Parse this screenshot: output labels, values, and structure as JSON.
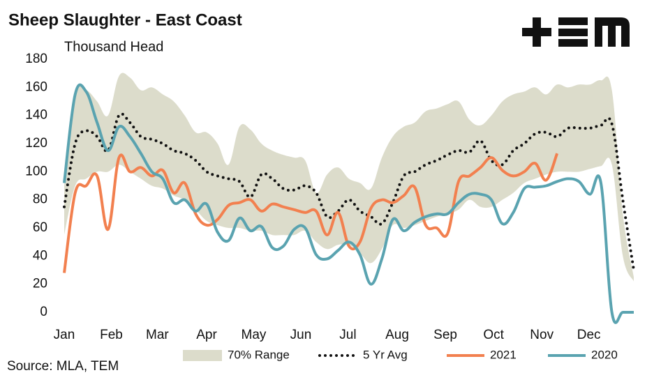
{
  "chart_data": {
    "type": "line",
    "title": "Sheep Slaughter - East Coast",
    "subtitle": "Thousand Head",
    "source": "Source: MLA, TEM",
    "x": [
      1,
      2,
      3,
      4,
      5,
      6,
      7,
      8,
      9,
      10,
      11,
      12,
      13,
      14,
      15,
      16,
      17,
      18,
      19,
      20,
      21,
      22,
      23,
      24,
      25,
      26,
      27,
      28,
      29,
      30,
      31,
      32,
      33,
      34,
      35,
      36,
      37,
      38,
      39,
      40,
      41,
      42,
      43,
      44,
      45,
      46,
      47,
      48,
      49,
      50,
      51,
      52,
      53
    ],
    "xlim": [
      1,
      53
    ],
    "xticks": [
      {
        "value": 1,
        "label": "Jan"
      },
      {
        "value": 5.3,
        "label": "Feb"
      },
      {
        "value": 9.5,
        "label": "Mar"
      },
      {
        "value": 14,
        "label": "Apr"
      },
      {
        "value": 18.3,
        "label": "May"
      },
      {
        "value": 22.6,
        "label": "Jun"
      },
      {
        "value": 26.9,
        "label": "Jul"
      },
      {
        "value": 31.4,
        "label": "Aug"
      },
      {
        "value": 35.8,
        "label": "Sep"
      },
      {
        "value": 40.2,
        "label": "Oct"
      },
      {
        "value": 44.6,
        "label": "Nov"
      },
      {
        "value": 48.9,
        "label": "Dec"
      }
    ],
    "ylim": [
      0,
      180
    ],
    "yticks": [
      0,
      20,
      40,
      60,
      80,
      100,
      120,
      140,
      160,
      180
    ],
    "legend": "bottom",
    "band": {
      "name": "70% Range",
      "color": "#dcdccb",
      "upper": [
        90,
        155,
        158,
        150,
        140,
        168,
        167,
        158,
        160,
        155,
        150,
        140,
        128,
        128,
        120,
        105,
        132,
        130,
        120,
        115,
        112,
        110,
        108,
        85,
        98,
        103,
        95,
        92,
        88,
        110,
        125,
        132,
        135,
        143,
        145,
        148,
        150,
        137,
        133,
        140,
        150,
        155,
        157,
        160,
        155,
        162,
        160,
        162,
        162,
        165,
        158,
        70,
        25
      ],
      "lower": [
        55,
        90,
        95,
        100,
        100,
        105,
        100,
        95,
        90,
        88,
        83,
        80,
        73,
        65,
        62,
        60,
        60,
        58,
        58,
        55,
        55,
        55,
        58,
        50,
        45,
        48,
        48,
        42,
        35,
        45,
        62,
        60,
        62,
        65,
        68,
        70,
        73,
        80,
        75,
        75,
        80,
        85,
        92,
        95,
        98,
        100,
        100,
        100,
        102,
        104,
        105,
        40,
        22
      ]
    },
    "series": [
      {
        "name": "5 Yr Avg",
        "color": "#111111",
        "dash": "dotted",
        "values": [
          75,
          120,
          129,
          125,
          115,
          140,
          135,
          125,
          123,
          120,
          115,
          113,
          108,
          100,
          97,
          95,
          93,
          82,
          98,
          95,
          88,
          87,
          90,
          85,
          68,
          72,
          80,
          72,
          68,
          63,
          78,
          97,
          100,
          105,
          108,
          112,
          115,
          114,
          122,
          108,
          105,
          115,
          120,
          127,
          128,
          125,
          131,
          131,
          131,
          133,
          134,
          80,
          30
        ]
      },
      {
        "name": "2021",
        "color": "#f2804f",
        "values": [
          28,
          85,
          90,
          97,
          59,
          110,
          100,
          103,
          97,
          101,
          85,
          92,
          70,
          62,
          66,
          76,
          78,
          80,
          72,
          77,
          75,
          73,
          71,
          72,
          55,
          71,
          47,
          50,
          74,
          80,
          78,
          83,
          89,
          62,
          60,
          56,
          93,
          97,
          103,
          110,
          101,
          97,
          100,
          106,
          94,
          113,
          null,
          null,
          null,
          null,
          null,
          null,
          null
        ]
      },
      {
        "name": "2020",
        "color": "#5aa3b0",
        "values": [
          92,
          155,
          157,
          135,
          115,
          132,
          125,
          113,
          100,
          95,
          78,
          80,
          72,
          77,
          57,
          51,
          67,
          58,
          61,
          46,
          47,
          59,
          60,
          41,
          38,
          44,
          50,
          41,
          20,
          38,
          66,
          58,
          64,
          68,
          70,
          70,
          78,
          84,
          84,
          80,
          63,
          71,
          88,
          89,
          90,
          93,
          95,
          93,
          84,
          92,
          0,
          0,
          0
        ]
      }
    ]
  }
}
